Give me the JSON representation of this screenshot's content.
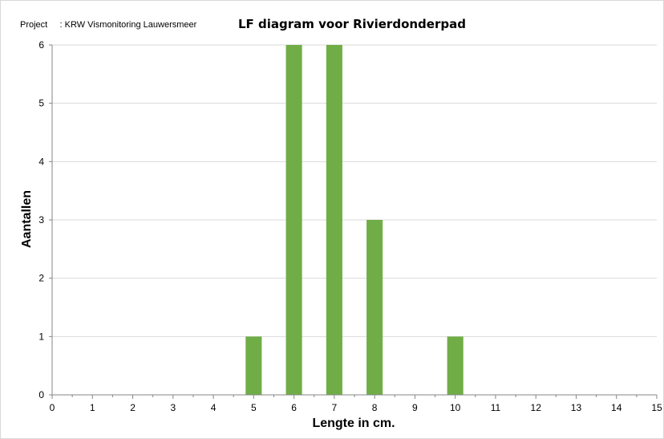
{
  "header": {
    "project_label": "Project",
    "project_value": ": KRW Vismonitoring Lauwersmeer"
  },
  "chart_data": {
    "type": "bar",
    "title": "LF diagram voor Rivierdonderpad",
    "xlabel": "Lengte in cm.",
    "ylabel": "Aantallen",
    "xlim": [
      0,
      15
    ],
    "ylim": [
      0,
      6
    ],
    "x_ticks": [
      0,
      1,
      2,
      3,
      4,
      5,
      6,
      7,
      8,
      9,
      10,
      11,
      12,
      13,
      14,
      15
    ],
    "y_ticks": [
      0,
      1,
      2,
      3,
      4,
      5,
      6
    ],
    "x": [
      5,
      6,
      7,
      8,
      10
    ],
    "values": [
      1,
      6,
      6,
      3,
      1
    ],
    "grid": true,
    "legend": "none",
    "colors": {
      "bar": "#70ad47",
      "grid": "#d9d9d9",
      "axis": "#868686"
    }
  }
}
